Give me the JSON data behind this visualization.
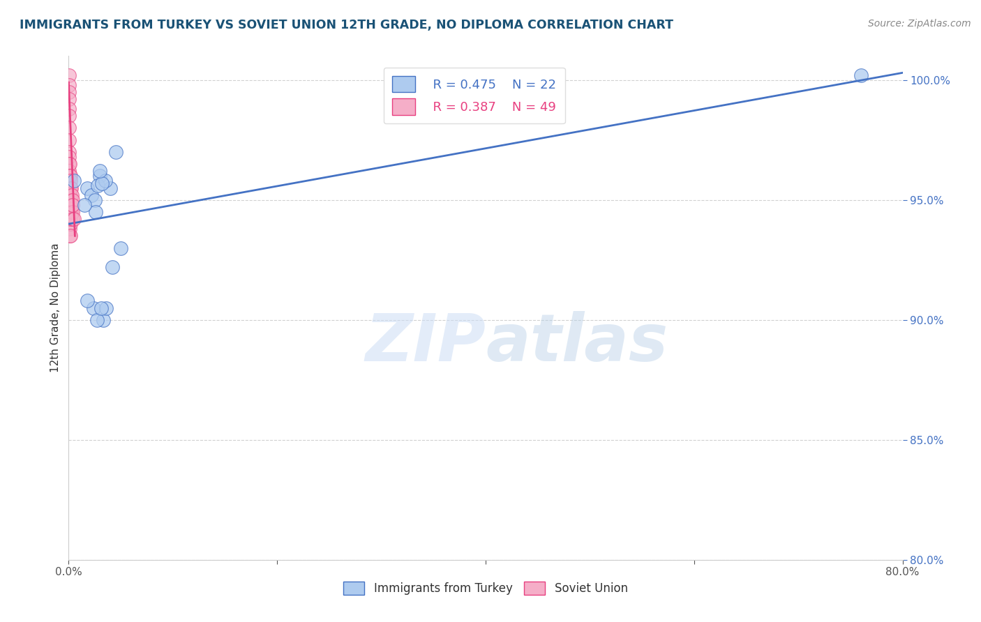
{
  "title": "IMMIGRANTS FROM TURKEY VS SOVIET UNION 12TH GRADE, NO DIPLOMA CORRELATION CHART",
  "source": "Source: ZipAtlas.com",
  "ylabel": "12th Grade, No Diploma",
  "xlim": [
    0,
    80
  ],
  "ylim": [
    80,
    101
  ],
  "xticks": [
    0,
    20,
    40,
    60,
    80
  ],
  "xticklabels": [
    "0.0%",
    "",
    "",
    "",
    "80.0%"
  ],
  "yticks": [
    80,
    85,
    90,
    95,
    100
  ],
  "yticklabels": [
    "80.0%",
    "85.0%",
    "90.0%",
    "95.0%",
    "100.0%"
  ],
  "turkey_R": 0.475,
  "turkey_N": 22,
  "soviet_R": 0.387,
  "soviet_N": 49,
  "turkey_color": "#aecbef",
  "soviet_color": "#f5aec8",
  "turkey_line_color": "#4472c4",
  "soviet_line_color": "#e84080",
  "turkey_scatter_x": [
    0.5,
    4.5,
    1.8,
    3.0,
    2.2,
    4.0,
    2.5,
    2.8,
    3.5,
    3.2,
    2.6,
    1.5,
    3.0,
    4.2,
    2.4,
    1.8,
    3.3,
    3.6,
    5.0,
    2.7,
    3.1,
    76.0
  ],
  "turkey_scatter_y": [
    95.8,
    97.0,
    95.5,
    96.0,
    95.2,
    95.5,
    95.0,
    95.6,
    95.8,
    95.7,
    94.5,
    94.8,
    96.2,
    92.2,
    90.5,
    90.8,
    90.0,
    90.5,
    93.0,
    90.0,
    90.5,
    100.2
  ],
  "soviet_scatter_x": [
    0.05,
    0.05,
    0.05,
    0.05,
    0.05,
    0.05,
    0.05,
    0.05,
    0.05,
    0.05,
    0.05,
    0.05,
    0.05,
    0.05,
    0.05,
    0.05,
    0.05,
    0.05,
    0.05,
    0.05,
    0.1,
    0.1,
    0.1,
    0.1,
    0.1,
    0.1,
    0.1,
    0.1,
    0.1,
    0.15,
    0.15,
    0.15,
    0.15,
    0.15,
    0.2,
    0.2,
    0.2,
    0.2,
    0.2,
    0.25,
    0.25,
    0.25,
    0.3,
    0.3,
    0.35,
    0.35,
    0.4,
    0.4,
    0.5
  ],
  "soviet_scatter_y": [
    100.2,
    99.8,
    99.5,
    99.2,
    98.8,
    98.5,
    98.0,
    97.5,
    97.0,
    96.8,
    96.5,
    96.2,
    96.0,
    95.8,
    95.5,
    95.2,
    95.0,
    94.8,
    94.5,
    94.2,
    96.5,
    96.0,
    95.5,
    95.0,
    94.8,
    94.5,
    94.2,
    93.8,
    93.5,
    96.0,
    95.5,
    95.0,
    94.5,
    94.0,
    95.8,
    95.2,
    94.8,
    94.2,
    93.5,
    95.5,
    95.0,
    94.5,
    95.2,
    94.8,
    95.0,
    94.5,
    94.8,
    94.2,
    94.2
  ],
  "turkey_trendline_x": [
    0,
    80
  ],
  "turkey_trendline_y": [
    94.0,
    100.3
  ],
  "soviet_trendline_x": [
    0.0,
    0.6
  ],
  "soviet_trendline_y": [
    99.9,
    93.5
  ],
  "watermark_zip": "ZIP",
  "watermark_atlas": "atlas",
  "background_color": "#ffffff",
  "grid_color": "#cccccc",
  "title_color": "#1a5276",
  "yticklabel_color": "#4472c4",
  "xticklabel_color": "#555555",
  "ylabel_color": "#333333"
}
